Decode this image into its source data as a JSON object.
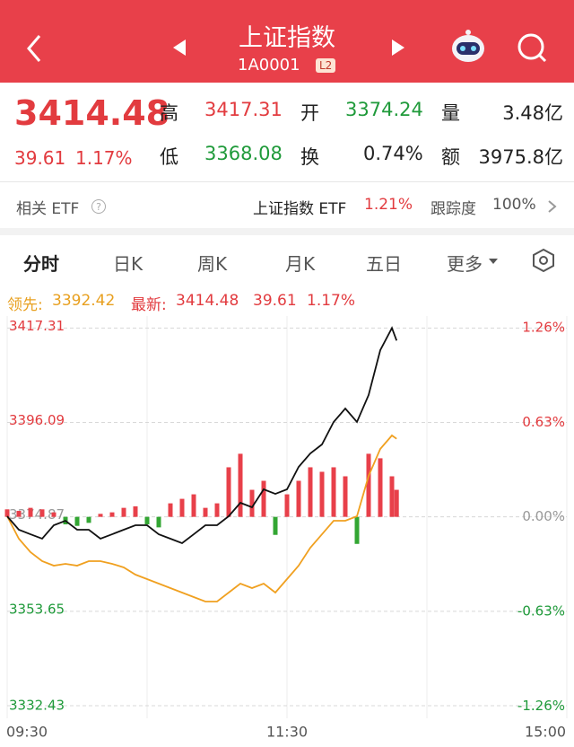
{
  "header": {
    "title": "上证指数",
    "code": "1A0001",
    "badge": "L2"
  },
  "quote": {
    "price": "3414.48",
    "change": "39.61",
    "change_pct": "1.17%",
    "stats": [
      {
        "label": "高",
        "value": "3417.31"
      },
      {
        "label": "开",
        "value": "3374.24"
      },
      {
        "label": "量",
        "value": "3.48亿"
      },
      {
        "label": "低",
        "value": "3368.08"
      },
      {
        "label": "换",
        "value": "0.74%"
      },
      {
        "label": "额",
        "value": "3975.8亿"
      }
    ]
  },
  "etf": {
    "label": "相关 ETF",
    "name": "上证指数 ETF",
    "change_pct": "1.21%",
    "tracking_label": "跟踪度",
    "tracking": "100%"
  },
  "tabs": [
    "分时",
    "日K",
    "周K",
    "月K",
    "五日",
    "更多"
  ],
  "info": {
    "lead": "3392.42",
    "latest": "3414.48",
    "change": "39.61",
    "change_pct": "1.17%"
  },
  "chart_data": {
    "type": "line",
    "x": [
      0,
      5,
      10,
      15,
      20,
      25,
      30,
      35,
      40,
      45,
      50,
      55,
      60,
      65,
      70,
      75,
      80,
      85,
      90,
      95,
      100,
      105,
      110,
      115,
      120,
      125,
      130,
      135,
      140,
      145,
      150,
      155,
      160,
      165,
      167
    ],
    "xlim": [
      0,
      240
    ],
    "xticks": [
      {
        "value": 0,
        "label": "09:30"
      },
      {
        "value": 120,
        "label": "11:30"
      },
      {
        "value": 240,
        "label": "15:00"
      }
    ],
    "ylim": [
      3329.6,
      3420.0
    ],
    "yticks": [
      3417.31,
      3396.09,
      3374.87,
      3353.65,
      3332.43
    ],
    "y2lim": [
      -1.341,
      1.337
    ],
    "y2ticks": [
      {
        "value": 1.26,
        "label": "1.26%"
      },
      {
        "value": 0.63,
        "label": "0.63%"
      },
      {
        "value": 0,
        "label": "0.00%"
      },
      {
        "value": -0.63,
        "label": "-0.63%"
      },
      {
        "value": -1.26,
        "label": "-1.26%"
      }
    ],
    "series": [
      {
        "name": "最新:",
        "color": "#111111",
        "values": [
          3375.0,
          3371.97,
          3370.96,
          3369.96,
          3372.98,
          3373.99,
          3371.97,
          3371.97,
          3369.96,
          3370.96,
          3371.97,
          3372.98,
          3372.98,
          3370.96,
          3369.96,
          3368.95,
          3370.96,
          3372.98,
          3372.98,
          3375.0,
          3378.03,
          3377.02,
          3381.05,
          3380.04,
          3381.05,
          3386.1,
          3389.12,
          3391.14,
          3396.19,
          3399.21,
          3396.19,
          3402.24,
          3412.33,
          3417.31,
          3414.48
        ]
      },
      {
        "name": "领先:",
        "color": "#f0a020",
        "values": [
          3375.0,
          3369.96,
          3366.93,
          3364.91,
          3363.9,
          3364.31,
          3363.9,
          3364.91,
          3364.91,
          3364.31,
          3363.5,
          3361.88,
          3360.88,
          3359.87,
          3358.86,
          3357.85,
          3356.84,
          3355.83,
          3355.83,
          3357.85,
          3359.87,
          3358.86,
          3359.87,
          3357.85,
          3360.88,
          3363.9,
          3367.94,
          3370.96,
          3373.99,
          3373.99,
          3375.0,
          3384.08,
          3390.13,
          3393.16,
          3392.42
        ]
      }
    ],
    "bars": {
      "axis": "y2",
      "up_color": "#e8404a",
      "down_color": "#33a633",
      "values": [
        0.05,
        0.04,
        0.06,
        0.05,
        0.03,
        -0.05,
        -0.06,
        -0.04,
        0.02,
        0.03,
        0.06,
        0.07,
        -0.05,
        -0.07,
        0.09,
        0.12,
        0.15,
        0.06,
        0.09,
        0.33,
        0.42,
        0.18,
        0.24,
        -0.12,
        0.15,
        0.24,
        0.33,
        0.3,
        0.33,
        0.27,
        -0.18,
        0.42,
        0.39,
        0.27,
        0.18
      ]
    },
    "grid": true
  }
}
